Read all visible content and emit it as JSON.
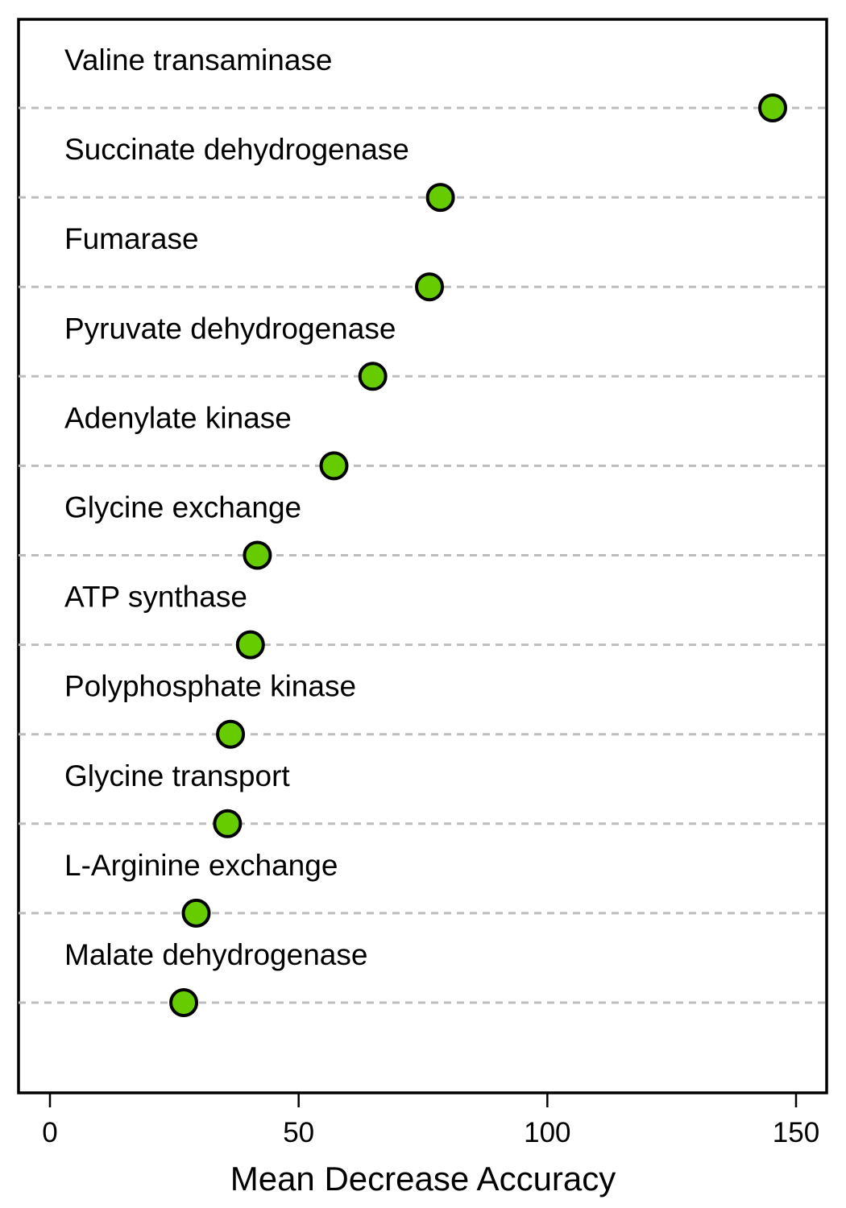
{
  "chart_data": {
    "type": "scatter",
    "subtype": "dotchart",
    "title": "",
    "xlabel": "Mean Decrease Accuracy",
    "ylabel": "",
    "xlim": [
      0,
      150
    ],
    "xticks": [
      0,
      50,
      100,
      150
    ],
    "grid": "dashed horizontal guide per item",
    "legend": "none",
    "point_color": "#66cc00",
    "point_edge_color": "#000000",
    "guide_color": "#bdbdbd",
    "categories": [
      "Valine transaminase",
      "Succinate dehydrogenase",
      "Fumarase",
      "Pyruvate dehydrogenase",
      "Adenylate kinase",
      "Glycine exchange",
      "ATP synthase",
      "Polyphosphate kinase",
      "Glycine transport",
      "L-Arginine exchange",
      "Malate dehydrogenase"
    ],
    "values": [
      145.3,
      78.5,
      76.3,
      64.9,
      57.1,
      41.7,
      40.3,
      36.3,
      35.7,
      29.4,
      26.9
    ]
  }
}
